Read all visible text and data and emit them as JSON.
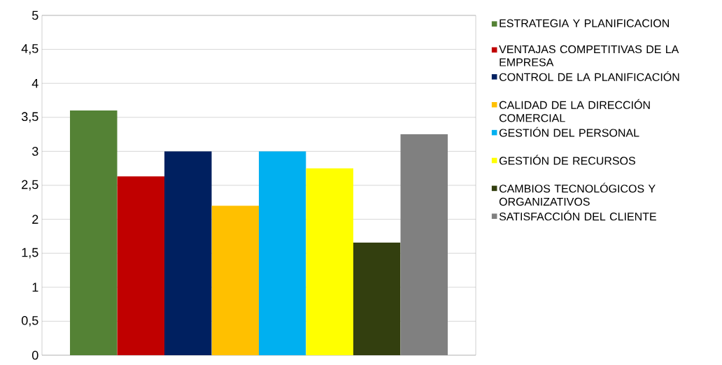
{
  "chart_data": {
    "type": "bar",
    "categories": [
      null
    ],
    "series": [
      {
        "name": "ESTRATEGIA Y PLANIFICACION",
        "color": "#548235",
        "values": [
          3.6
        ]
      },
      {
        "name": "VENTAJAS COMPETITIVAS DE LA EMPRESA",
        "color": "#c00000",
        "values": [
          2.63
        ]
      },
      {
        "name": "CONTROL DE LA PLANIFICACIÓN",
        "color": "#002060",
        "values": [
          3.0
        ]
      },
      {
        "name": "CALIDAD DE LA DIRECCIÓN COMERCIAL",
        "color": "#ffc000",
        "values": [
          2.2
        ]
      },
      {
        "name": "GESTIÓN DEL PERSONAL",
        "color": "#00b0f0",
        "values": [
          3.0
        ]
      },
      {
        "name": "GESTIÓN DE RECURSOS",
        "color": "#ffff00",
        "values": [
          2.75
        ]
      },
      {
        "name": "CAMBIOS TECNOLÓGICOS Y ORGANIZATIVOS",
        "color": "#333f0f",
        "values": [
          1.66
        ]
      },
      {
        "name": "SATISFACCIÓN DEL CLIENTE",
        "color": "#808080",
        "values": [
          3.25
        ]
      }
    ],
    "ylim": [
      0,
      5
    ],
    "yticks": [
      {
        "value": 0,
        "label": "0"
      },
      {
        "value": 0.5,
        "label": "0,5"
      },
      {
        "value": 1,
        "label": "1"
      },
      {
        "value": 1.5,
        "label": "1,5"
      },
      {
        "value": 2,
        "label": "2"
      },
      {
        "value": 2.5,
        "label": "2,5"
      },
      {
        "value": 3,
        "label": "3"
      },
      {
        "value": 3.5,
        "label": "3,5"
      },
      {
        "value": 4,
        "label": "4"
      },
      {
        "value": 4.5,
        "label": "4,5"
      },
      {
        "value": 5,
        "label": "5"
      }
    ],
    "grid": "y",
    "legend": "right"
  }
}
